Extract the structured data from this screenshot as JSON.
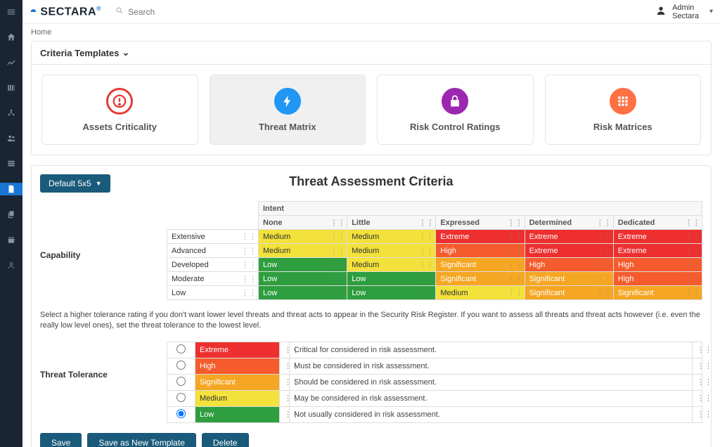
{
  "logo": {
    "text": "SECTARA",
    "reg": "®"
  },
  "search": {
    "placeholder": "Search"
  },
  "user": {
    "line1": "Admin",
    "line2": "Sectara"
  },
  "breadcrumb": "Home",
  "panel_title": "Criteria Templates",
  "cards": [
    {
      "label": "Assets Criticality",
      "icon_bg": "#ffffff",
      "icon_border": "#e53935",
      "icon_color": "#e53935",
      "active": false
    },
    {
      "label": "Threat Matrix",
      "icon_bg": "#2196f3",
      "icon_border": "#2196f3",
      "icon_color": "#ffffff",
      "active": true
    },
    {
      "label": "Risk Control Ratings",
      "icon_bg": "#9c27b0",
      "icon_border": "#9c27b0",
      "icon_color": "#ffffff",
      "active": false
    },
    {
      "label": "Risk Matrices",
      "icon_bg": "#ff7043",
      "icon_border": "#ff7043",
      "icon_color": "#ffffff",
      "active": false
    }
  ],
  "default_btn": "Default 5x5",
  "section_title": "Threat Assessment Criteria",
  "intent_header": "Intent",
  "intent_cols": [
    "None",
    "Little",
    "Expressed",
    "Determined",
    "Dedicated"
  ],
  "capability_label": "Capability",
  "cap_rows": [
    "Extensive",
    "Advanced",
    "Developed",
    "Moderate",
    "Low"
  ],
  "levels": {
    "Low": {
      "color": "#2e9e3f",
      "text": "Low",
      "dark": false
    },
    "Medium": {
      "color": "#f3e13c",
      "text": "Medium",
      "dark": true
    },
    "Significant": {
      "color": "#f5a623",
      "text": "Significant",
      "dark": false
    },
    "High": {
      "color": "#f55b2c",
      "text": "High",
      "dark": false
    },
    "Extreme": {
      "color": "#ed2f2f",
      "text": "Extreme",
      "dark": false
    }
  },
  "matrix": [
    [
      "Medium",
      "Medium",
      "Extreme",
      "Extreme",
      "Extreme"
    ],
    [
      "Medium",
      "Medium",
      "High",
      "Extreme",
      "Extreme"
    ],
    [
      "Low",
      "Medium",
      "Significant",
      "High",
      "High"
    ],
    [
      "Low",
      "Low",
      "Significant",
      "Significant",
      "High"
    ],
    [
      "Low",
      "Low",
      "Medium",
      "Significant",
      "Significant"
    ]
  ],
  "info_text": "Select a higher tolerance rating if you don't want lower level threats and threat acts to appear in the Security Risk Register. If you want to assess all threats and threat acts however (i.e. even the really low level ones), set the threat tolerance to the lowest level.",
  "tolerance_label": "Threat Tolerance",
  "tolerance_rows": [
    {
      "level": "Extreme",
      "desc": "Critical for considered in risk assessment.",
      "selected": false
    },
    {
      "level": "High",
      "desc": "Must be considered in risk assessment.",
      "selected": false
    },
    {
      "level": "Significant",
      "desc": "Should be considered in risk assessment.",
      "selected": false
    },
    {
      "level": "Medium",
      "desc": "May be considered in risk assessment.",
      "selected": false
    },
    {
      "level": "Low",
      "desc": "Not usually considered in risk assessment.",
      "selected": true
    }
  ],
  "buttons": {
    "save": "Save",
    "save_as": "Save as New Template",
    "delete": "Delete"
  }
}
